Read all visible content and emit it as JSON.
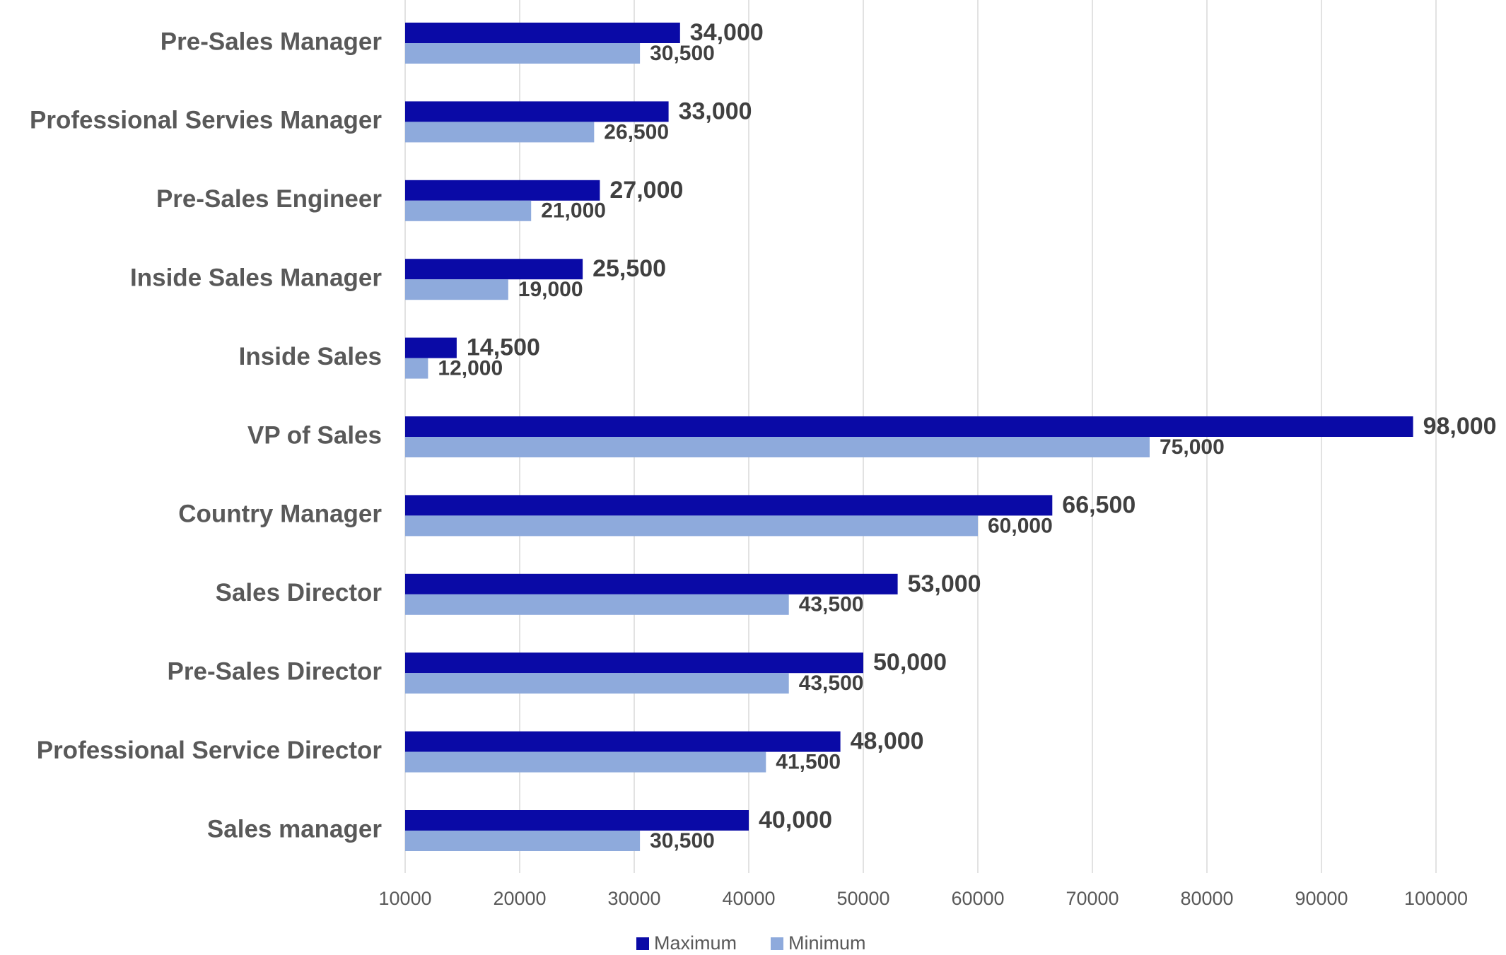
{
  "chart_data": {
    "type": "bar",
    "orientation": "horizontal",
    "categories": [
      "Pre-Sales Manager",
      "Professional Servies Manager",
      "Pre-Sales Engineer",
      "Inside Sales Manager",
      "Inside Sales",
      "VP of Sales",
      "Country Manager",
      "Sales Director",
      "Pre-Sales Director",
      "Professional Service Director",
      "Sales manager"
    ],
    "series": [
      {
        "name": "Maximum",
        "color": "#0a0aa6",
        "values": [
          34000,
          33000,
          27000,
          25500,
          14500,
          98000,
          66500,
          53000,
          50000,
          48000,
          40000
        ],
        "value_labels": [
          "34,000",
          "33,000",
          "27,000",
          "25,500",
          "14,500",
          "98,000",
          "66,500",
          "53,000",
          "50,000",
          "48,000",
          "40,000"
        ]
      },
      {
        "name": "Minimum",
        "color": "#8eaadc",
        "values": [
          30500,
          26500,
          21000,
          19000,
          12000,
          75000,
          60000,
          43500,
          43500,
          41500,
          30500
        ],
        "value_labels": [
          "30,500",
          "26,500",
          "21,000",
          "19,000",
          "12,000",
          "75,000",
          "60,000",
          "43,500",
          "43,500",
          "41,500",
          "30,500"
        ]
      }
    ],
    "xlim": [
      10000,
      100000
    ],
    "xticks": [
      10000,
      20000,
      30000,
      40000,
      50000,
      60000,
      70000,
      80000,
      90000,
      100000
    ],
    "grid": true,
    "legend": "bottom"
  }
}
